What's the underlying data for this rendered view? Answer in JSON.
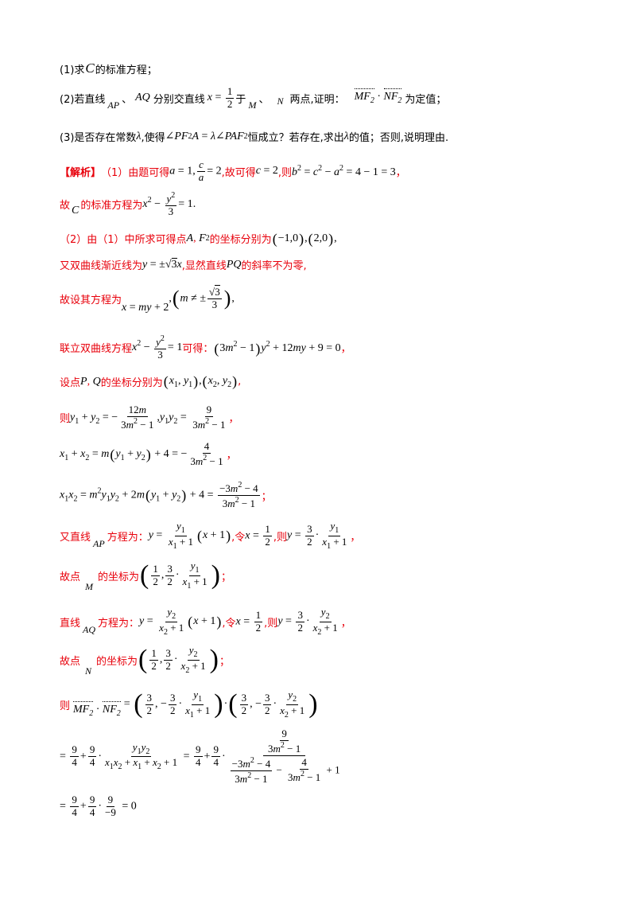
{
  "q1": "(1)求C的标准方程；",
  "q2": "(2)若直线AP、AQ分别交直线x = 1/2于M、N两点,证明：MF₂ · NF₂为定值；",
  "q3": "(3)是否存在常数λ,使得∠PF₂A = λ∠PAF₂恒成立？若存在,求出λ的值；否则,说明理由.",
  "solution_label": "【解析】",
  "s1a": "（1）由题可得a = 1, c/a = 2 ,故可得c = 2 ,则b² = c² − a² = 4 − 1 = 3，",
  "s1b": "故C的标准方程为x² − y²/3 = 1 .",
  "s2a": "（2）由（1）中所求可得点A, F₂的坐标分别为(−1,0),(2,0),",
  "s2b": "又双曲线渐近线为y = ±√3x ,显然直线PQ的斜率不为零,",
  "s2c": "故设其方程为x = my + 2 ,(m ≠ ±√3/3),",
  "s2d": "联立双曲线方程x² − y²/3 = 1可得：(3m² − 1)y² + 12my + 9 = 0，",
  "s2e": "设点P, Q的坐标分别为(x₁, y₁),(x₂, y₂),",
  "s2f": "则y₁ + y₂ = −12m/(3m² − 1) ,y₁y₂ = 9/(3m² − 1)，",
  "s2g": "x₁ + x₂ = m(y₁ + y₂) + 4 = −4/(3m² − 1)，",
  "s2h": "x₁x₂ = m²y₁y₂ + 2m(y₁ + y₂) + 4 = (−3m² − 4)/(3m² − 1)；",
  "s2i": "又直线AP方程为：y = y₁/(x₁ + 1)(x + 1) ,令x = 1/2 ,则y = 3/2 · y₁/(x₁ + 1)，",
  "s2j": "故点M的坐标为(1/2, 3/2 · y₁/(x₁ + 1))；",
  "s2k": "直线AQ方程为：y = y₂/(x₂ + 1)(x + 1) ,令x = 1/2 ,则y = 3/2 · y₂/(x₂ + 1)，",
  "s2l": "故点N的坐标为(1/2, 3/2 · y₂/(x₂ + 1))；",
  "s2m": "则MF₂ · NF₂ = (3/2, −3/2 · y₁/(x₁ + 1)) · (3/2, −3/2 · y₂/(x₂ + 1))",
  "s2n": "= 9/4 + 9/4 · y₁y₂/(x₁x₂ + x₁ + x₂ + 1) = 9/4 + 9/4 · (9/(3m² − 1)) / ((−3m² − 4)/(3m² − 1) − 4/(3m² − 1) + 1)",
  "s2o": "= 9/4 + 9/4 · 9/(−9) = 0"
}
